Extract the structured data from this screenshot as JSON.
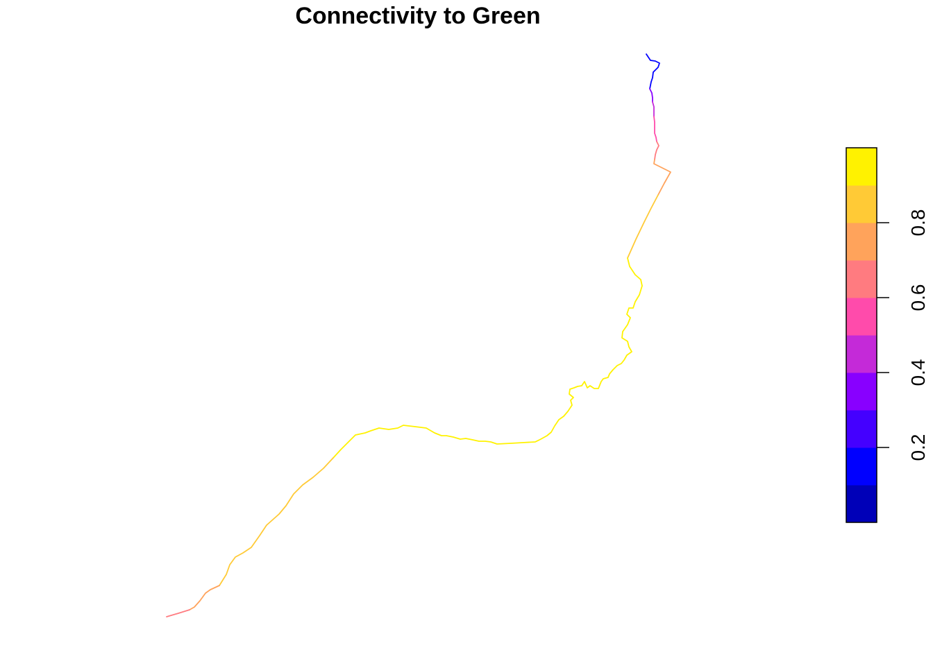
{
  "title": "Connectivity to Green",
  "chart_data": {
    "type": "line",
    "title": "Connectivity to Green",
    "xlabel": "",
    "ylabel": "",
    "axes": "none",
    "grid": false,
    "legend": {
      "kind": "colorbar",
      "placement": "right",
      "range": [
        0,
        1
      ],
      "ticks": [
        "0.2",
        "0.4",
        "0.6",
        "0.8"
      ],
      "tick_values": [
        0.2,
        0.4,
        0.6,
        0.8
      ],
      "bins": [
        {
          "from": 0.0,
          "to": 0.1,
          "color": "#0000B8"
        },
        {
          "from": 0.1,
          "to": 0.2,
          "color": "#0000FF"
        },
        {
          "from": 0.2,
          "to": 0.3,
          "color": "#4400FF"
        },
        {
          "from": 0.3,
          "to": 0.4,
          "color": "#8800FF"
        },
        {
          "from": 0.4,
          "to": 0.5,
          "color": "#C42AD8"
        },
        {
          "from": 0.5,
          "to": 0.6,
          "color": "#FF4BAB"
        },
        {
          "from": 0.6,
          "to": 0.7,
          "color": "#FF7B80"
        },
        {
          "from": 0.7,
          "to": 0.8,
          "color": "#FFA35B"
        },
        {
          "from": 0.8,
          "to": 0.9,
          "color": "#FFCA36"
        },
        {
          "from": 0.9,
          "to": 1.0,
          "color": "#FFF200"
        }
      ]
    },
    "series": [
      {
        "segments": [
          {
            "value": 0.15,
            "points": [
              [
                931,
                78
              ],
              [
                937,
                87
              ],
              [
                944,
                88
              ],
              [
                950,
                91
              ],
              [
                948,
                97
              ],
              [
                941,
                104
              ],
              [
                940,
                112
              ],
              [
                938,
                118
              ],
              [
                937,
                123
              ],
              [
                936,
                128
              ]
            ]
          },
          {
            "value": 0.3,
            "points": [
              [
                936,
                128
              ],
              [
                939,
                134
              ],
              [
                940,
                141
              ],
              [
                940,
                147
              ]
            ]
          },
          {
            "value": 0.45,
            "points": [
              [
                940,
                147
              ],
              [
                942,
                154
              ],
              [
                942,
                161
              ],
              [
                942,
                168
              ]
            ]
          },
          {
            "value": 0.55,
            "points": [
              [
                942,
                168
              ],
              [
                943,
                176
              ],
              [
                943,
                184
              ],
              [
                943,
                192
              ],
              [
                945,
                198
              ],
              [
                946,
                204
              ]
            ]
          },
          {
            "value": 0.65,
            "points": [
              [
                946,
                204
              ],
              [
                949,
                210
              ],
              [
                946,
                216
              ],
              [
                944,
                223
              ],
              [
                943,
                230
              ]
            ]
          },
          {
            "value": 0.75,
            "points": [
              [
                943,
                230
              ],
              [
                942,
                236
              ],
              [
                952,
                241
              ],
              [
                960,
                245
              ],
              [
                966,
                248
              ],
              [
                957,
                264
              ],
              [
                948,
                281
              ]
            ]
          },
          {
            "value": 0.85,
            "points": [
              [
                948,
                281
              ],
              [
                938,
                300
              ],
              [
                928,
                320
              ],
              [
                916,
                345
              ],
              [
                904,
                372
              ]
            ]
          },
          {
            "value": 0.95,
            "points": [
              [
                904,
                372
              ],
              [
                907,
                384
              ],
              [
                915,
                396
              ],
              [
                923,
                403
              ],
              [
                925,
                412
              ],
              [
                921,
                425
              ],
              [
                915,
                435
              ],
              [
                912,
                444
              ],
              [
                906,
                444
              ],
              [
                903,
                453
              ],
              [
                908,
                458
              ],
              [
                904,
                468
              ],
              [
                897,
                478
              ],
              [
                896,
                487
              ],
              [
                904,
                492
              ],
              [
                906,
                500
              ],
              [
                910,
                507
              ],
              [
                903,
                512
              ],
              [
                899,
                519
              ],
              [
                895,
                524
              ],
              [
                889,
                527
              ],
              [
                883,
                533
              ],
              [
                878,
                539
              ],
              [
                876,
                544
              ],
              [
                869,
                546
              ],
              [
                866,
                550
              ],
              [
                862,
                560
              ],
              [
                856,
                560
              ],
              [
                850,
                556
              ],
              [
                846,
                559
              ],
              [
                842,
                550
              ],
              [
                838,
                556
              ],
              [
                832,
                557
              ],
              [
                827,
                559
              ],
              [
                821,
                561
              ],
              [
                820,
                568
              ],
              [
                826,
                573
              ],
              [
                822,
                577
              ],
              [
                824,
                584
              ],
              [
                818,
                593
              ],
              [
                812,
                600
              ],
              [
                805,
                605
              ],
              [
                799,
                614
              ],
              [
                794,
                623
              ],
              [
                788,
                628
              ],
              [
                779,
                633
              ],
              [
                771,
                637
              ],
              [
                753,
                638
              ],
              [
                736,
                639
              ],
              [
                716,
                640
              ],
              [
                707,
                637
              ],
              [
                699,
                636
              ],
              [
                690,
                636
              ],
              [
                681,
                634
              ],
              [
                671,
                632
              ],
              [
                663,
                633
              ],
              [
                653,
                630
              ],
              [
                643,
                628
              ],
              [
                636,
                628
              ],
              [
                626,
                624
              ],
              [
                614,
                617
              ],
              [
                598,
                615
              ],
              [
                581,
                613
              ],
              [
                573,
                617
              ],
              [
                560,
                619
              ],
              [
                546,
                617
              ],
              [
                534,
                621
              ],
              [
                526,
                624
              ],
              [
                512,
                627
              ],
              [
                502,
                637
              ],
              [
                491,
                648
              ],
              [
                480,
                660
              ]
            ]
          },
          {
            "value": 0.85,
            "points": [
              [
                480,
                660
              ],
              [
                466,
                675
              ],
              [
                451,
                688
              ],
              [
                436,
                699
              ],
              [
                423,
                712
              ],
              [
                412,
                729
              ],
              [
                402,
                741
              ],
              [
                384,
                757
              ],
              [
                374,
                772
              ],
              [
                362,
                789
              ],
              [
                350,
                797
              ],
              [
                339,
                803
              ],
              [
                331,
                814
              ],
              [
                326,
                828
              ],
              [
                316,
                844
              ]
            ]
          },
          {
            "value": 0.75,
            "points": [
              [
                316,
                844
              ],
              [
                303,
                850
              ],
              [
                296,
                855
              ],
              [
                288,
                866
              ],
              [
                280,
                875
              ],
              [
                273,
                879
              ]
            ]
          },
          {
            "value": 0.65,
            "points": [
              [
                273,
                879
              ],
              [
                257,
                884
              ],
              [
                240,
                889
              ]
            ]
          }
        ]
      }
    ]
  }
}
